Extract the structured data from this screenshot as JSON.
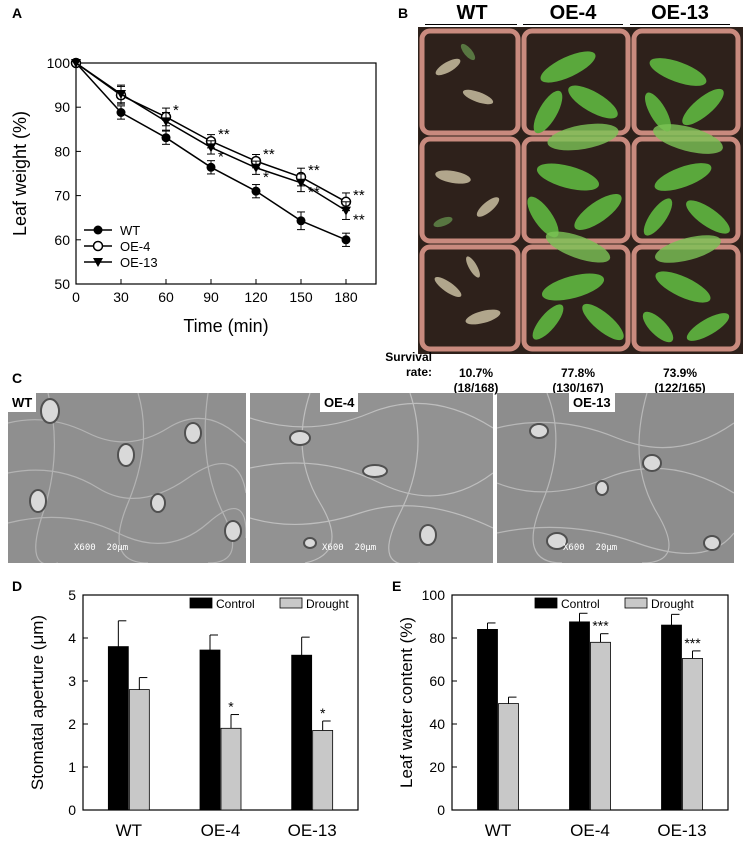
{
  "panels": {
    "A": "A",
    "B": "B",
    "C": "C",
    "D": "D",
    "E": "E"
  },
  "chart_data": [
    {
      "id": "A",
      "type": "line",
      "xlabel": "Time (min)",
      "ylabel": "Leaf weight (%)",
      "x": [
        0,
        30,
        60,
        90,
        120,
        150,
        180
      ],
      "xlim": [
        0,
        200
      ],
      "ylim": [
        50,
        100
      ],
      "xticks": [
        "0",
        "30",
        "60",
        "90",
        "120",
        "150",
        "180"
      ],
      "yticks": [
        "50",
        "60",
        "70",
        "80",
        "90",
        "100"
      ],
      "series": [
        {
          "name": "WT",
          "marker": "filled-circle",
          "values": [
            100,
            88.8,
            83.1,
            76.4,
            71.0,
            64.3,
            60.0
          ],
          "errors": [
            0,
            1.5,
            1.5,
            1.5,
            1.5,
            2.0,
            1.5
          ],
          "significance": [
            "",
            "",
            "",
            "",
            "",
            "",
            ""
          ]
        },
        {
          "name": "OE-4",
          "marker": "open-circle",
          "values": [
            100,
            92.7,
            87.8,
            82.3,
            77.8,
            74.2,
            68.6
          ],
          "errors": [
            0,
            2.0,
            2.0,
            1.5,
            1.5,
            2.0,
            2.0
          ],
          "significance": [
            "",
            "",
            "*",
            "**",
            "**",
            "**",
            "**"
          ]
        },
        {
          "name": "OE-13",
          "marker": "filled-triangle",
          "values": [
            100,
            93.0,
            86.8,
            80.9,
            76.3,
            72.9,
            66.6
          ],
          "errors": [
            0,
            2.0,
            2.0,
            1.5,
            1.5,
            2.0,
            2.0
          ],
          "significance": [
            "",
            "",
            "",
            "*",
            "*",
            "**",
            "**"
          ]
        }
      ]
    },
    {
      "id": "D",
      "type": "bar",
      "ylabel": "Stomatal aperture (μm)",
      "categories": [
        "WT",
        "OE-4",
        "OE-13"
      ],
      "ylim": [
        0,
        5
      ],
      "yticks": [
        "0",
        "1",
        "2",
        "3",
        "4",
        "5"
      ],
      "series": [
        {
          "name": "Control",
          "color": "#000000",
          "values": [
            3.8,
            3.72,
            3.6
          ],
          "errors": [
            0.6,
            0.35,
            0.42
          ],
          "significance": [
            "",
            "",
            ""
          ]
        },
        {
          "name": "Drought",
          "color": "#c8c8c8",
          "values": [
            2.8,
            1.9,
            1.85
          ],
          "errors": [
            0.28,
            0.32,
            0.22
          ],
          "significance": [
            "",
            "*",
            "*"
          ]
        }
      ]
    },
    {
      "id": "E",
      "type": "bar",
      "ylabel": "Leaf water content (%)",
      "categories": [
        "WT",
        "OE-4",
        "OE-13"
      ],
      "ylim": [
        0,
        100
      ],
      "yticks": [
        "0",
        "20",
        "40",
        "60",
        "80",
        "100"
      ],
      "series": [
        {
          "name": "Control",
          "color": "#000000",
          "values": [
            84,
            87.5,
            86
          ],
          "errors": [
            3,
            4,
            5
          ],
          "significance": [
            "",
            "",
            ""
          ]
        },
        {
          "name": "Drought",
          "color": "#c8c8c8",
          "values": [
            49.5,
            78,
            70.5
          ],
          "errors": [
            3,
            4,
            3.5
          ],
          "significance": [
            "",
            "***",
            "***"
          ]
        }
      ]
    }
  ],
  "photo_B": {
    "genotypes": [
      "WT",
      "OE-4",
      "OE-13"
    ],
    "survival_label": "Survival\nrate:",
    "survival": [
      {
        "percent": "10.7%",
        "counts": "(18/168)"
      },
      {
        "percent": "77.8%",
        "counts": "(130/167)"
      },
      {
        "percent": "73.9%",
        "counts": "(122/165)"
      }
    ]
  },
  "sem_C": {
    "labels": [
      "WT",
      "OE-4",
      "OE-13"
    ],
    "scale_text": "X600",
    "scale_bar": "20μm"
  },
  "colors": {
    "drought_bar": "#c8c8c8",
    "control_bar": "#000000",
    "leaf_green": "#5aa83c",
    "soil": "#3a2a22",
    "pot": "#c98a7e"
  }
}
